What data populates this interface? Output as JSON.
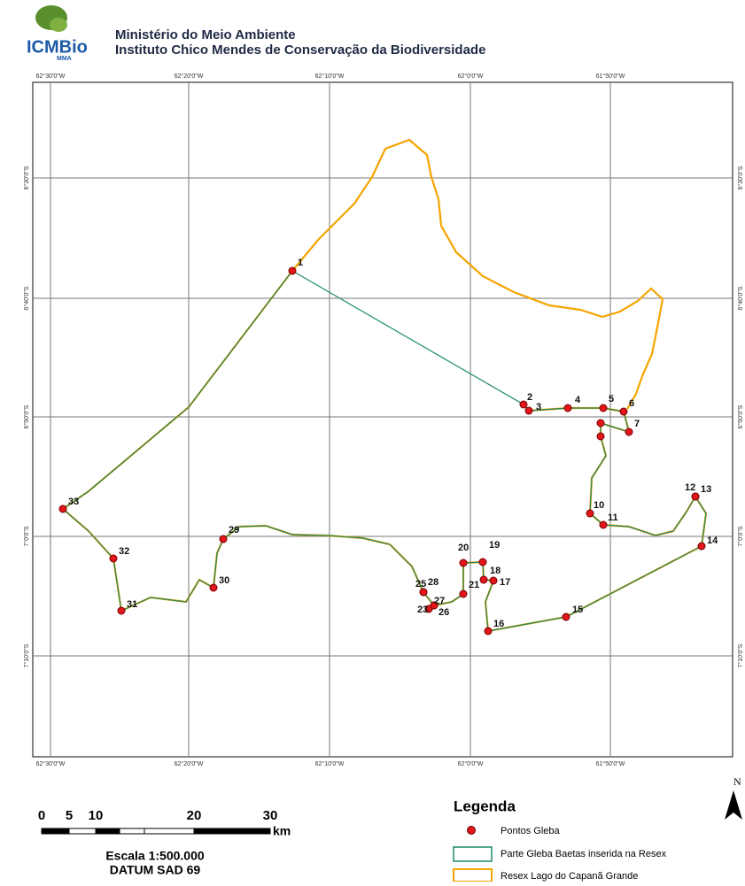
{
  "header": {
    "logo": "ICMBio",
    "logo_sub": "MMA",
    "title": "Ministério do Meio Ambiente",
    "subtitle": "Instituto Chico Mendes de Conservação da Biodiversidade"
  },
  "map": {
    "longitude_labels": [
      "62°30'0\"W",
      "62°20'0\"W",
      "62°10'0\"W",
      "62°0'0\"W",
      "61°50'0\"W"
    ],
    "latitude_labels": [
      "6°30'0\"S",
      "6°40'0\"S",
      "6°50'0\"S",
      "7°0'0\"S",
      "7°10'0\"S"
    ],
    "point_labels": [
      "1",
      "2",
      "3",
      "4",
      "5",
      "6",
      "7",
      "10",
      "11",
      "12",
      "13",
      "14",
      "15",
      "16",
      "17",
      "18",
      "19",
      "20",
      "21",
      "25",
      "23",
      "26",
      "27",
      "28",
      "29",
      "30",
      "31",
      "32",
      "33"
    ]
  },
  "scale": {
    "ticks": [
      "0",
      "5",
      "10",
      "20",
      "30"
    ],
    "unit": "km",
    "text": "Escala 1:500.000",
    "datum": "DATUM SAD 69"
  },
  "legend": {
    "title": "Legenda",
    "items": [
      "Pontos Gleba",
      "Parte Gleba Baetas inserida na Resex",
      "Resex Lago do Capanã Grande"
    ]
  },
  "north": "N"
}
